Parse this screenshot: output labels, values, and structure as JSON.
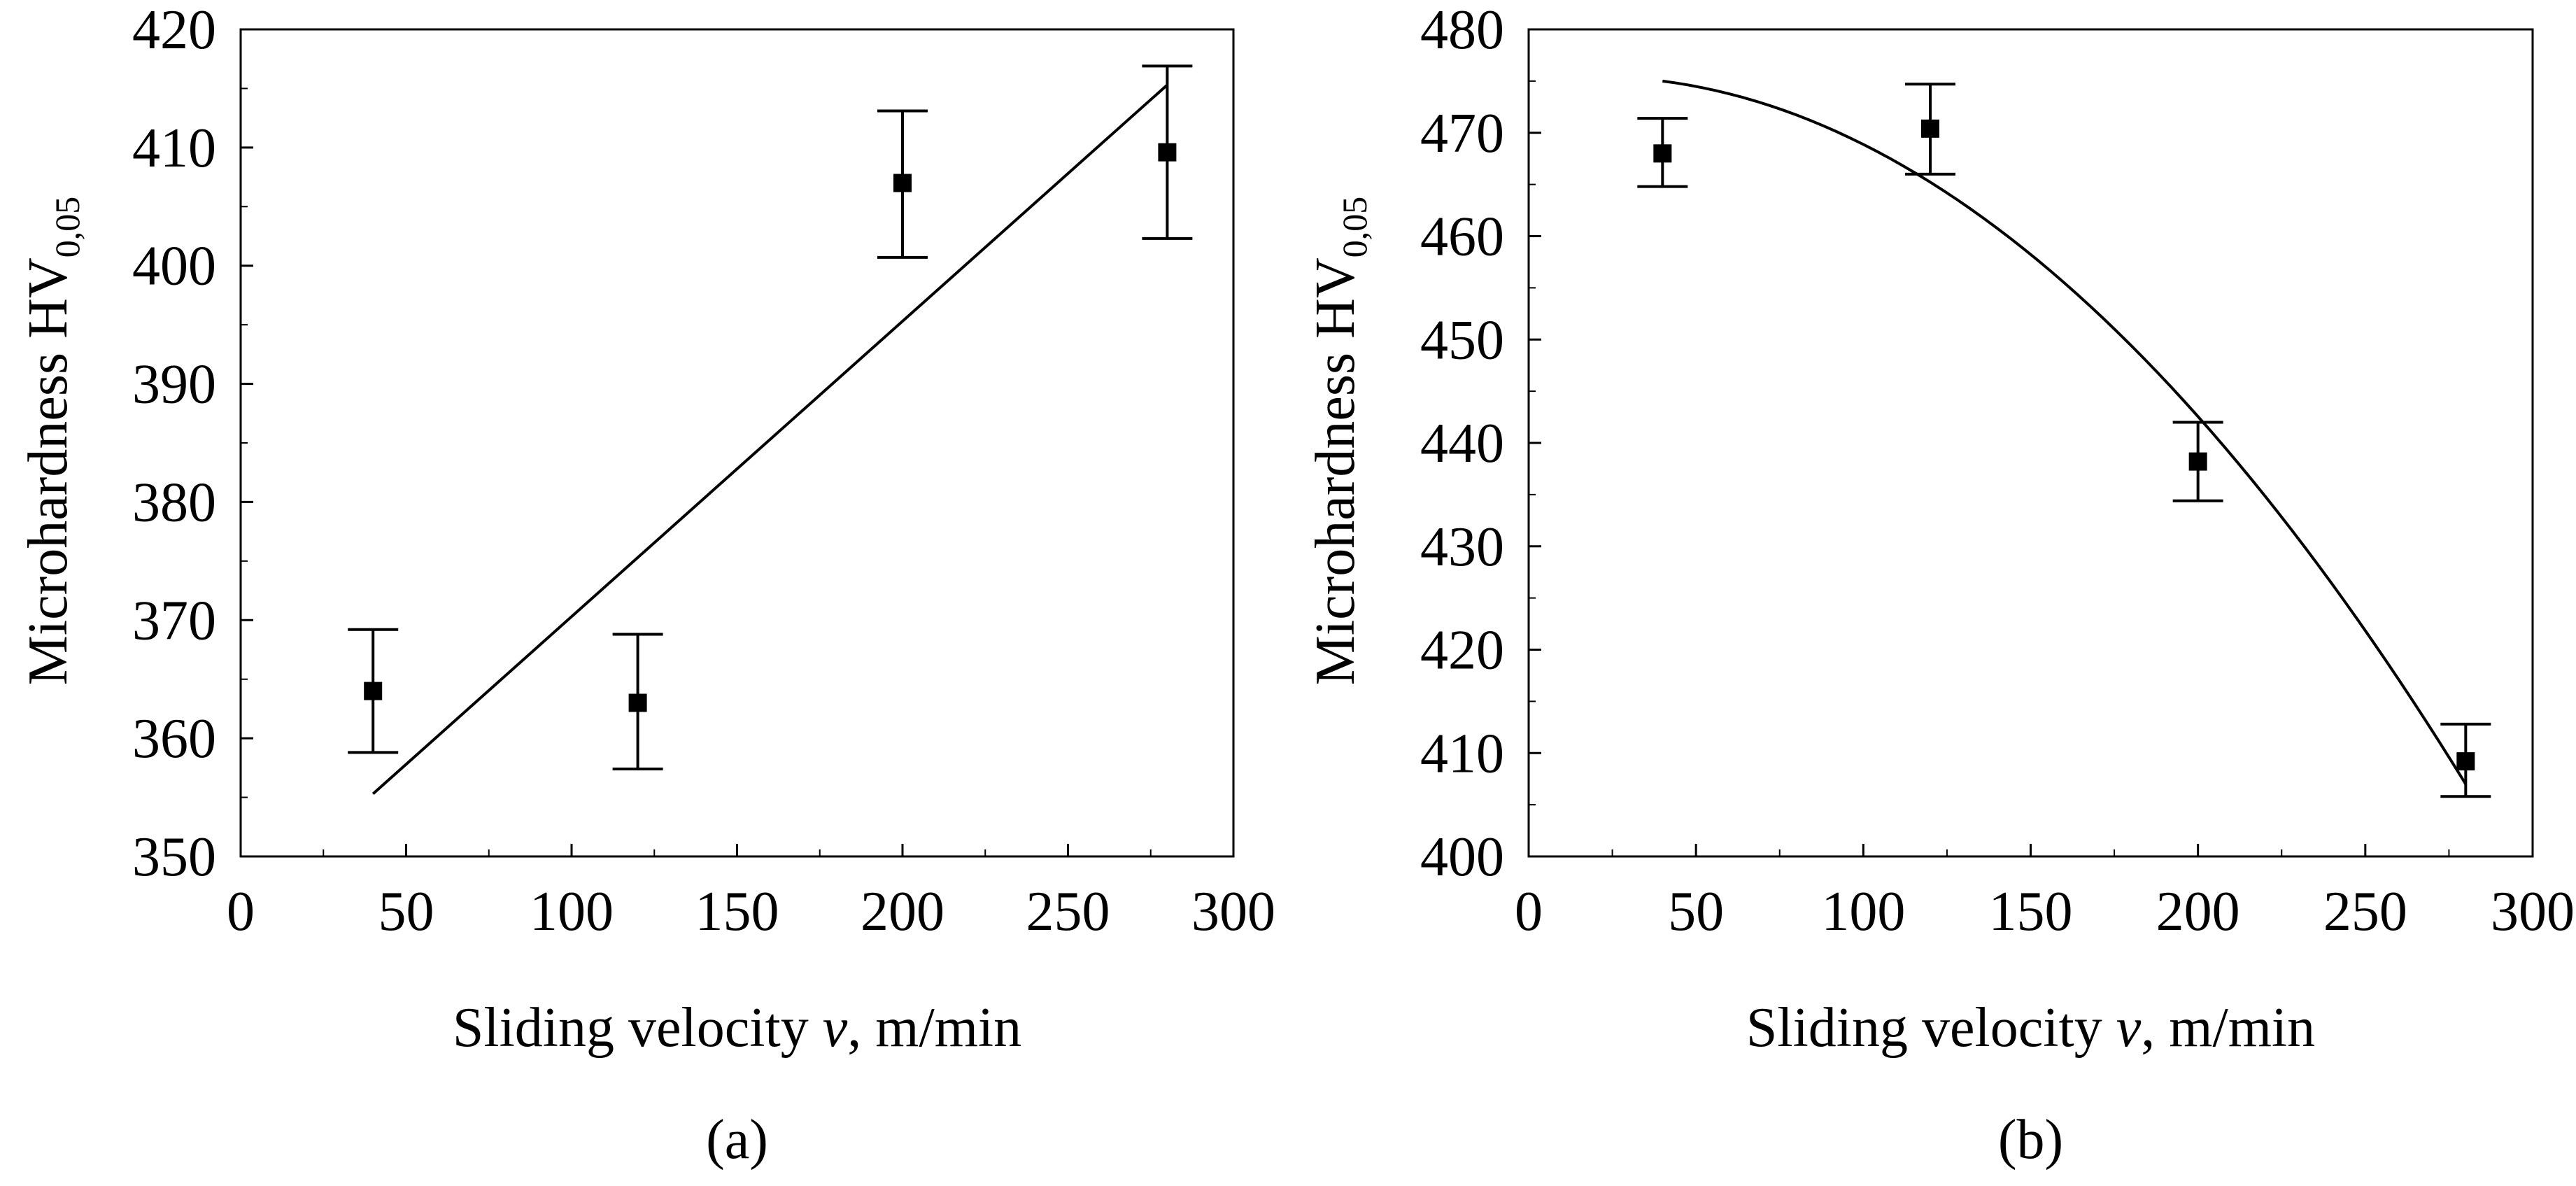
{
  "chart_data": [
    {
      "type": "scatter",
      "panel_label": "(a)",
      "xlabel": {
        "prefix": "Sliding velocity ",
        "var": "v",
        "suffix": ", m/min"
      },
      "ylabel": {
        "main": "Microhardness HV",
        "sub": "0,05"
      },
      "xlim": [
        0,
        300
      ],
      "ylim": [
        350,
        420
      ],
      "xticks": [
        0,
        50,
        100,
        150,
        200,
        250,
        300
      ],
      "yticks": [
        350,
        360,
        370,
        380,
        390,
        400,
        410,
        420
      ],
      "grid": false,
      "series": [
        {
          "points": [
            {
              "x": 40,
              "y": 364,
              "err_low": 358.8,
              "err_high": 369.2
            },
            {
              "x": 120,
              "y": 363,
              "err_low": 357.4,
              "err_high": 368.8
            },
            {
              "x": 200,
              "y": 407,
              "err_low": 400.7,
              "err_high": 413.1
            },
            {
              "x": 280,
              "y": 409.6,
              "err_low": 402.3,
              "err_high": 416.9
            }
          ]
        }
      ],
      "trend": {
        "type": "linear",
        "points": [
          [
            40,
            355.3
          ],
          [
            280,
            415.3
          ]
        ]
      }
    },
    {
      "type": "scatter",
      "panel_label": "(b)",
      "xlabel": {
        "prefix": "Sliding velocity ",
        "var": "v",
        "suffix": ", m/min"
      },
      "ylabel": {
        "main": "Microhardness HV",
        "sub": "0,05"
      },
      "xlim": [
        0,
        300
      ],
      "ylim": [
        400,
        480
      ],
      "xticks": [
        0,
        50,
        100,
        150,
        200,
        250,
        300
      ],
      "yticks": [
        400,
        410,
        420,
        430,
        440,
        450,
        460,
        470,
        480
      ],
      "grid": false,
      "series": [
        {
          "points": [
            {
              "x": 40,
              "y": 468,
              "err_low": 464.8,
              "err_high": 471.4
            },
            {
              "x": 120,
              "y": 470.4,
              "err_low": 466,
              "err_high": 474.7
            },
            {
              "x": 200,
              "y": 438.2,
              "err_low": 434.4,
              "err_high": 442
            },
            {
              "x": 280,
              "y": 409.2,
              "err_low": 405.8,
              "err_high": 412.8
            }
          ]
        }
      ],
      "trend": {
        "type": "quadratic",
        "points": [
          [
            40,
            475
          ],
          [
            160,
            455.5
          ],
          [
            280,
            407
          ]
        ]
      }
    }
  ]
}
